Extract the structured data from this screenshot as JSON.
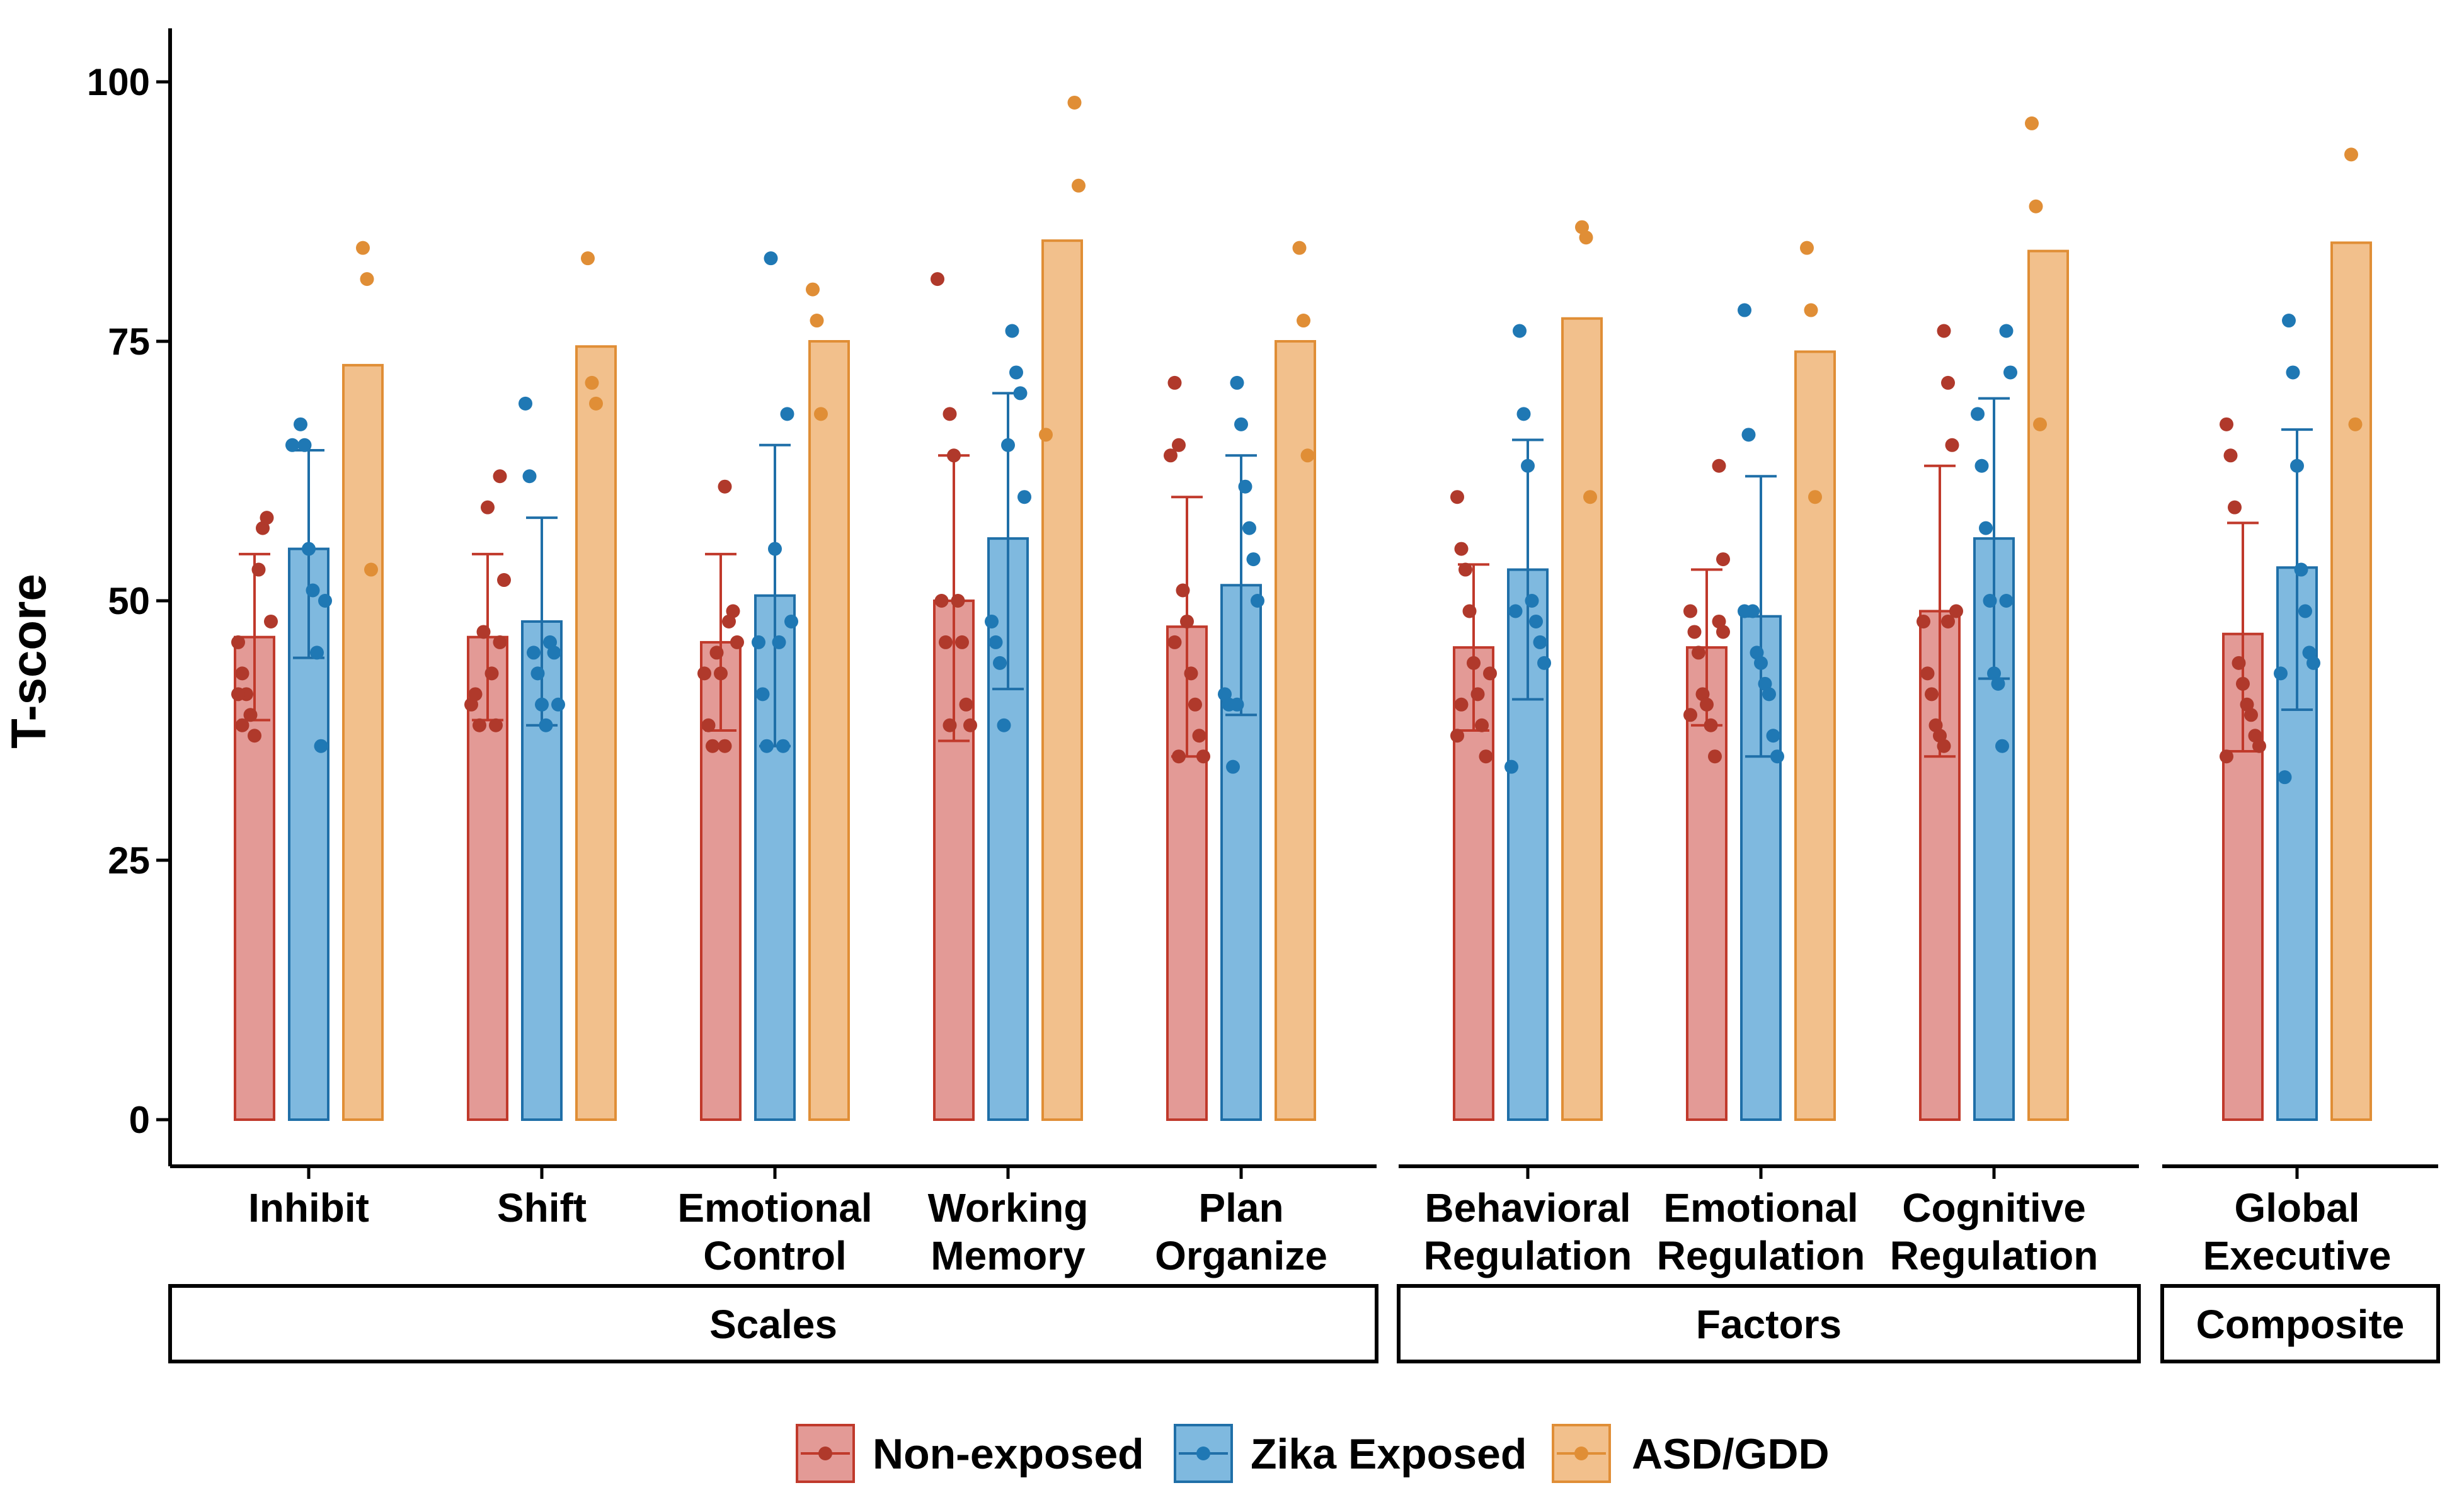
{
  "chart_data": {
    "type": "bar",
    "ylabel": "T-score",
    "ylim": [
      0,
      100
    ],
    "yticks": [
      0,
      25,
      50,
      75,
      100
    ],
    "series": [
      {
        "name": "Non-exposed",
        "fill": "#e39a96",
        "stroke": "#c0392b",
        "dot": "#b0392b"
      },
      {
        "name": "Zika Exposed",
        "fill": "#7fb9df",
        "stroke": "#1f6fa8",
        "dot": "#1f78b4"
      },
      {
        "name": "ASD/GDD",
        "fill": "#f2c08c",
        "stroke": "#e08e36",
        "dot": "#e08e36"
      }
    ],
    "panels": [
      {
        "name": "Scales",
        "categories": [
          {
            "label": [
              "Inhibit"
            ],
            "values": [
              46.5,
              55,
              72.7
            ],
            "errors": [
              [
                38.5,
                54.5
              ],
              [
                44.5,
                64.5
              ],
              null
            ],
            "points": [
              [
                46,
                43,
                41,
                39,
                37,
                53,
                57,
                58,
                48,
                41,
                38
              ],
              [
                67,
                65,
                55,
                51,
                45,
                36,
                50,
                65
              ],
              [
                84,
                81,
                53
              ]
            ]
          },
          {
            "label": [
              "Shift"
            ],
            "values": [
              46.5,
              48,
              74.5
            ],
            "errors": [
              [
                38.5,
                54.5
              ],
              [
                38,
                58
              ],
              null
            ],
            "points": [
              [
                62,
                52,
                40,
                41,
                38,
                47,
                59,
                43,
                38,
                46
              ],
              [
                69,
                62,
                45,
                43,
                40,
                38,
                46,
                45,
                40
              ],
              [
                83,
                71,
                69
              ]
            ]
          },
          {
            "label": [
              "Emotional",
              "Control"
            ],
            "values": [
              46,
              50.5,
              75
            ],
            "errors": [
              [
                37.5,
                54.5
              ],
              [
                36,
                65
              ],
              null
            ],
            "points": [
              [
                61,
                48,
                49,
                46,
                43,
                38,
                36,
                45,
                43,
                36
              ],
              [
                68,
                48,
                46,
                41,
                36,
                83,
                55,
                46,
                36
              ],
              [
                80,
                77,
                68
              ]
            ]
          },
          {
            "label": [
              "Working",
              "Memory"
            ],
            "values": [
              50,
              56,
              84.7
            ],
            "errors": [
              [
                36.5,
                64
              ],
              [
                41.5,
                70
              ],
              null
            ],
            "points": [
              [
                68,
                64,
                50,
                46,
                40,
                38,
                81,
                50,
                46,
                38
              ],
              [
                76,
                72,
                70,
                60,
                48,
                46,
                44,
                38,
                65
              ],
              [
                98,
                90,
                66
              ]
            ]
          },
          {
            "label": [
              "Plan",
              "Organize"
            ],
            "values": [
              47.5,
              51.5,
              75
            ],
            "errors": [
              [
                35,
                60
              ],
              [
                39,
                64
              ],
              null
            ],
            "points": [
              [
                71,
                65,
                51,
                48,
                43,
                40,
                37,
                35,
                64,
                46,
                35
              ],
              [
                71,
                67,
                61,
                57,
                54,
                50,
                41,
                40,
                34,
                40
              ],
              [
                84,
                77,
                64
              ]
            ]
          }
        ]
      },
      {
        "name": "Factors",
        "categories": [
          {
            "label": [
              "Behavioral",
              "Regulation"
            ],
            "values": [
              45.5,
              53,
              77.2
            ],
            "errors": [
              [
                37.5,
                53.5
              ],
              [
                40.5,
                65.5
              ],
              null
            ],
            "points": [
              [
                60,
                55,
                53,
                49,
                44,
                41,
                38,
                35,
                43,
                37,
                40
              ],
              [
                76,
                68,
                63,
                50,
                48,
                46,
                44,
                34,
                49
              ],
              [
                86,
                85,
                60
              ]
            ]
          },
          {
            "label": [
              "Emotional",
              "Regulation"
            ],
            "values": [
              45.5,
              48.5,
              74
            ],
            "errors": [
              [
                38,
                53
              ],
              [
                35,
                62
              ],
              null
            ],
            "points": [
              [
                63,
                54,
                49,
                47,
                45,
                41,
                40,
                38,
                35,
                48,
                47,
                39
              ],
              [
                78,
                66,
                49,
                45,
                44,
                42,
                41,
                37,
                35,
                49
              ],
              [
                84,
                78,
                60
              ]
            ]
          },
          {
            "label": [
              "Cognitive",
              "Regulation"
            ],
            "values": [
              49,
              56,
              83.7
            ],
            "errors": [
              [
                35,
                63
              ],
              [
                42.5,
                69.5
              ],
              null
            ],
            "points": [
              [
                76,
                71,
                65,
                49,
                48,
                43,
                41,
                38,
                37,
                36,
                48
              ],
              [
                76,
                72,
                68,
                63,
                57,
                50,
                43,
                42,
                36,
                50
              ],
              [
                96,
                88,
                67
              ]
            ]
          }
        ]
      },
      {
        "name": "Composite",
        "categories": [
          {
            "label": [
              "Global",
              "Executive"
            ],
            "values": [
              46.8,
              53.2,
              84.5
            ],
            "errors": [
              [
                35.5,
                57.5
              ],
              [
                39.5,
                66.5
              ],
              null
            ],
            "points": [
              [
                67,
                64,
                59,
                44,
                42,
                40,
                39,
                37,
                36,
                35
              ],
              [
                77,
                72,
                63,
                53,
                49,
                45,
                44,
                43,
                33
              ],
              [
                93,
                67
              ]
            ]
          }
        ]
      }
    ]
  }
}
